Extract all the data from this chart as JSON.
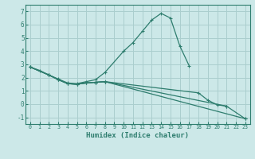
{
  "xlabel": "Humidex (Indice chaleur)",
  "bg_color": "#cce8e8",
  "grid_color": "#aacece",
  "line_color": "#2e7d6e",
  "xlim": [
    -0.5,
    23.5
  ],
  "ylim": [
    -1.5,
    7.5
  ],
  "yticks": [
    -1,
    0,
    1,
    2,
    3,
    4,
    5,
    6,
    7
  ],
  "xticks": [
    0,
    1,
    2,
    3,
    4,
    5,
    6,
    7,
    8,
    9,
    10,
    11,
    12,
    13,
    14,
    15,
    16,
    17,
    18,
    19,
    20,
    21,
    22,
    23
  ],
  "series": [
    {
      "x": [
        0,
        1,
        2,
        3,
        4,
        5,
        6,
        7,
        8,
        10,
        11,
        12,
        13,
        14,
        15,
        16,
        17
      ],
      "y": [
        2.8,
        2.55,
        2.2,
        1.9,
        1.6,
        1.55,
        1.7,
        1.85,
        2.4,
        4.0,
        4.65,
        5.5,
        6.35,
        6.85,
        6.5,
        4.4,
        2.9
      ]
    },
    {
      "x": [
        0,
        2,
        3,
        4,
        5,
        6,
        7,
        8,
        18,
        19,
        20,
        21,
        23
      ],
      "y": [
        2.8,
        2.2,
        1.85,
        1.55,
        1.5,
        1.6,
        1.65,
        1.7,
        0.85,
        0.3,
        -0.05,
        -0.15,
        -1.1
      ]
    },
    {
      "comment": "line from x=0,y=2.8 straight to x=23,y=-1.1",
      "x": [
        0,
        2,
        3,
        4,
        5,
        6,
        7,
        8,
        23
      ],
      "y": [
        2.8,
        2.2,
        1.85,
        1.55,
        1.5,
        1.6,
        1.65,
        1.7,
        -1.1
      ]
    },
    {
      "x": [
        0,
        2,
        3,
        4,
        5,
        6,
        7,
        8,
        21
      ],
      "y": [
        2.8,
        2.2,
        1.85,
        1.55,
        1.5,
        1.6,
        1.65,
        1.7,
        -0.15
      ]
    }
  ]
}
